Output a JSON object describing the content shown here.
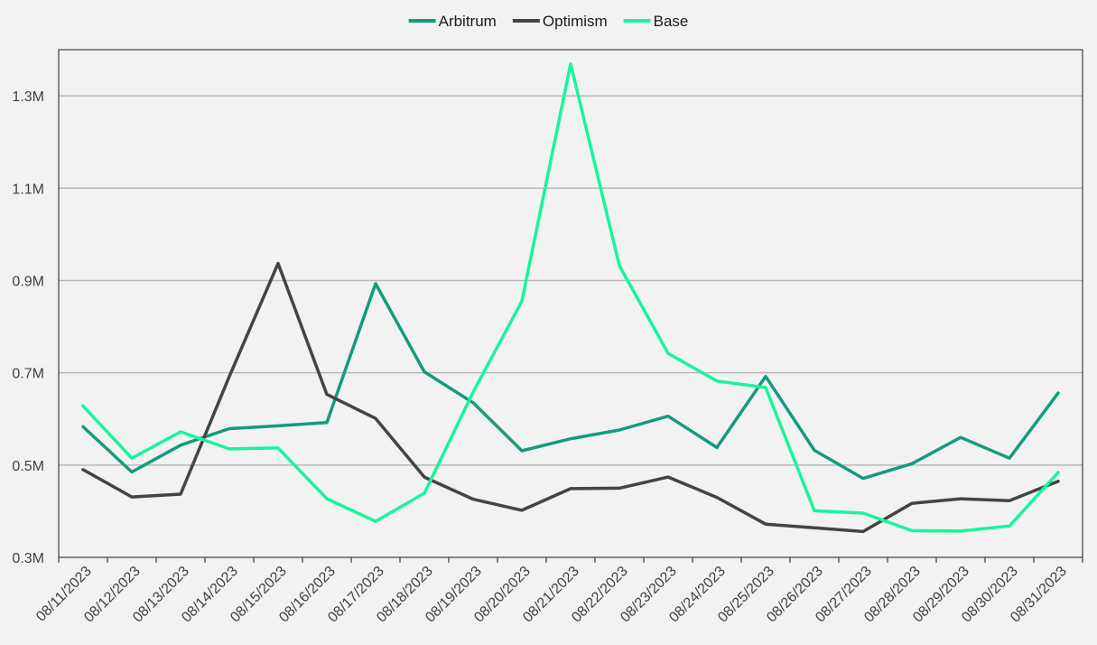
{
  "chart_data": {
    "type": "line",
    "title": "",
    "xlabel": "",
    "ylabel": "",
    "categories": [
      "08/11/2023",
      "08/12/2023",
      "08/13/2023",
      "08/14/2023",
      "08/15/2023",
      "08/16/2023",
      "08/17/2023",
      "08/18/2023",
      "08/19/2023",
      "08/20/2023",
      "08/21/2023",
      "08/22/2023",
      "08/23/2023",
      "08/24/2023",
      "08/25/2023",
      "08/26/2023",
      "08/27/2023",
      "08/28/2023",
      "08/29/2023",
      "08/30/2023",
      "08/31/2023"
    ],
    "ylim": [
      0.3,
      1.4
    ],
    "yticks": [
      0.3,
      0.5,
      0.7,
      0.9,
      1.1,
      1.3
    ],
    "ytick_labels": [
      "0.3M",
      "0.5M",
      "0.7M",
      "0.9M",
      "1.1M",
      "1.3M"
    ],
    "grid": true,
    "legend_position": "top-center",
    "series": [
      {
        "name": "Arbitrum",
        "color": "#149b7f",
        "values": [
          0.583,
          0.485,
          0.543,
          0.579,
          0.585,
          0.592,
          0.893,
          0.702,
          0.635,
          0.531,
          0.557,
          0.576,
          0.606,
          0.538,
          0.692,
          0.532,
          0.471,
          0.503,
          0.56,
          0.515,
          0.656
        ]
      },
      {
        "name": "Optimism",
        "color": "#444444",
        "values": [
          0.49,
          0.431,
          0.437,
          0.692,
          0.937,
          0.653,
          0.601,
          0.474,
          0.426,
          0.402,
          0.449,
          0.45,
          0.474,
          0.43,
          0.372,
          0.364,
          0.356,
          0.417,
          0.427,
          0.423,
          0.465
        ]
      },
      {
        "name": "Base",
        "color": "#17f59e",
        "values": [
          0.628,
          0.515,
          0.572,
          0.535,
          0.537,
          0.427,
          0.378,
          0.439,
          0.658,
          0.855,
          1.369,
          0.932,
          0.742,
          0.682,
          0.668,
          0.401,
          0.396,
          0.358,
          0.357,
          0.368,
          0.484
        ]
      }
    ]
  }
}
